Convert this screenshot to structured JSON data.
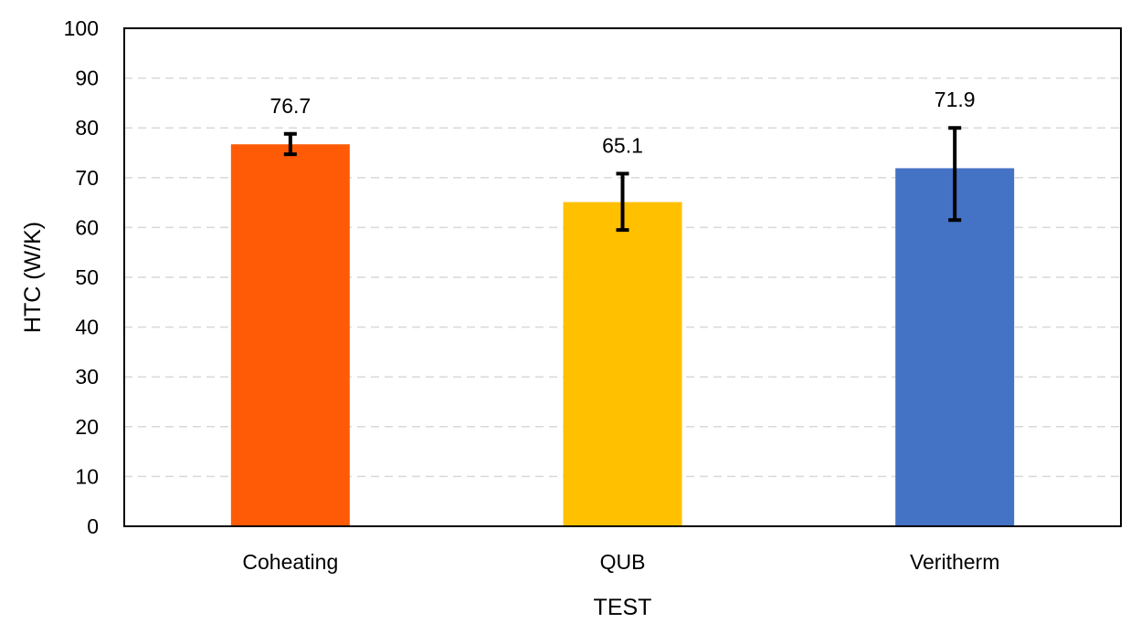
{
  "chart_data": {
    "type": "bar",
    "title": "",
    "xlabel": "TEST",
    "ylabel": "HTC (W/K)",
    "ylim": [
      0,
      100
    ],
    "yticks": [
      0,
      10,
      20,
      30,
      40,
      50,
      60,
      70,
      80,
      90,
      100
    ],
    "grid": true,
    "legend": "none",
    "categories": [
      "Coheating",
      "QUB",
      "Veritherm"
    ],
    "values": [
      76.7,
      65.1,
      71.9
    ],
    "value_labels": [
      "76.7",
      "65.1",
      "71.9"
    ],
    "error_low": [
      74.7,
      59.5,
      61.5
    ],
    "error_high": [
      78.8,
      70.8,
      80.0
    ],
    "colors": [
      "#ff5a05",
      "#ffc000",
      "#4472c4"
    ]
  }
}
